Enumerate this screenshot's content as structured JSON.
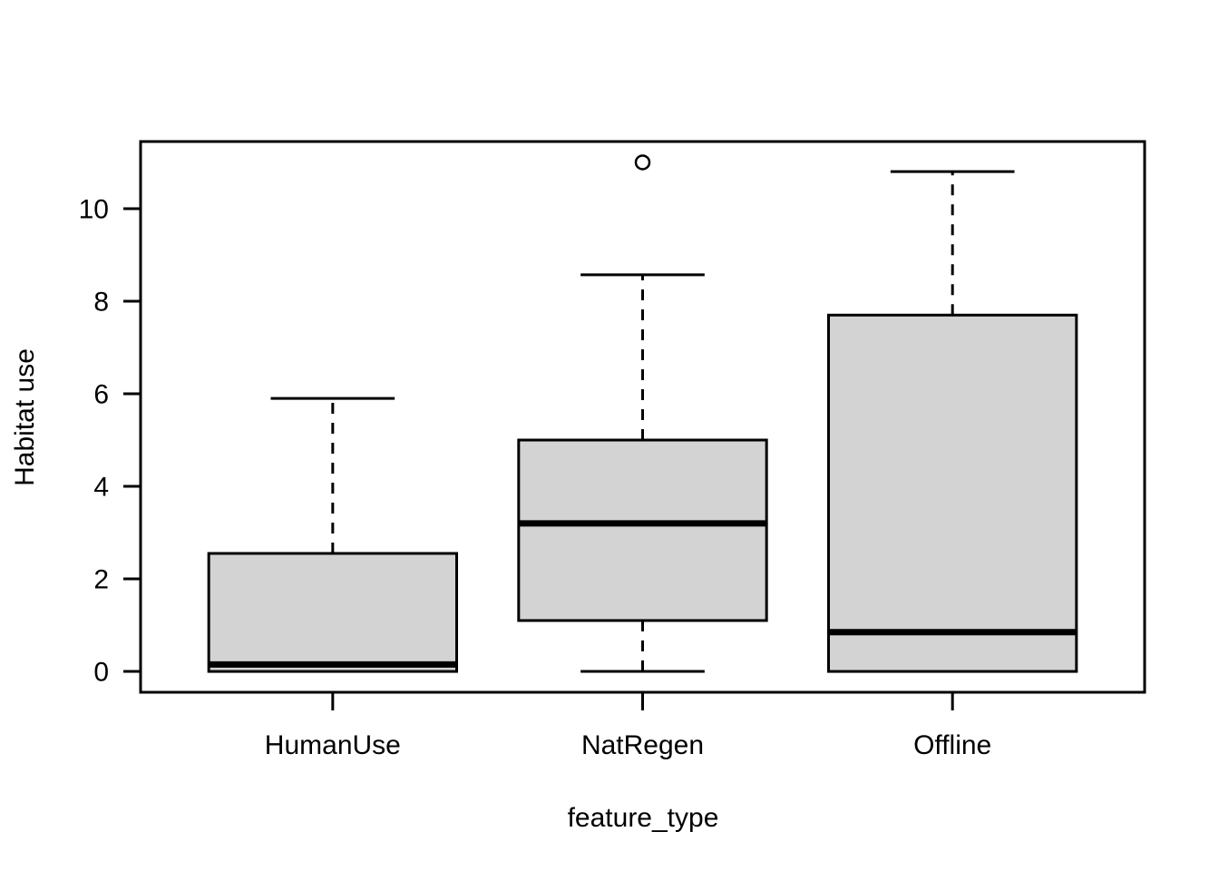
{
  "figure": {
    "background": "#ffffff",
    "box_fill": "#d3d3d3",
    "line_color": "#000000"
  },
  "chart_data": {
    "type": "boxplot",
    "title": "",
    "xlabel": "feature_type",
    "ylabel": "Habitat use",
    "categories": [
      "HumanUse",
      "NatRegen",
      "Offline"
    ],
    "y_ticks": [
      0,
      2,
      4,
      6,
      8,
      10
    ],
    "ylim": [
      -0.45,
      11.45
    ],
    "grid": false,
    "legend": null,
    "series": [
      {
        "name": "HumanUse",
        "min": 0.0,
        "q1": 0.0,
        "median": 0.15,
        "q3": 2.55,
        "max": 5.9,
        "outliers": []
      },
      {
        "name": "NatRegen",
        "min": 0.0,
        "q1": 1.1,
        "median": 3.2,
        "q3": 5.0,
        "max": 8.57,
        "outliers": [
          11.0
        ]
      },
      {
        "name": "Offline",
        "min": 0.0,
        "q1": 0.0,
        "median": 0.85,
        "q3": 7.7,
        "max": 10.8,
        "outliers": []
      }
    ]
  }
}
